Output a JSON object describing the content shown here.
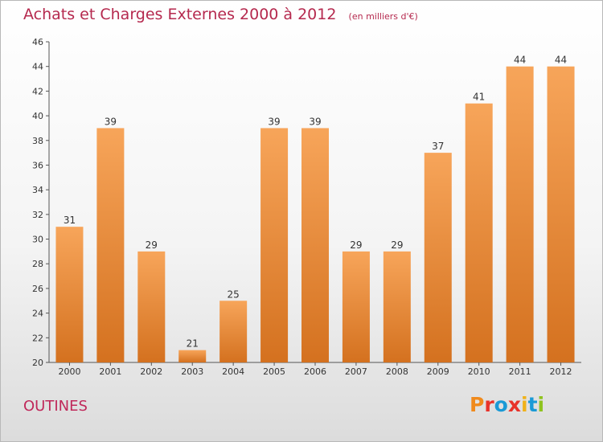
{
  "header": {
    "title": "Achats et Charges Externes 2000 à 2012",
    "subtitle": "(en milliers d'€)"
  },
  "footer": {
    "commune": "OUTINES",
    "brand": "Proxiti"
  },
  "colors": {
    "title": "#b5294e",
    "bar_top": "#f7a55a",
    "bar_bottom": "#d4711f",
    "brand_letters": [
      "#f08a1c",
      "#e8322a",
      "#1a9ad6",
      "#e8322a",
      "#f0b21a",
      "#1a9ad6",
      "#8fc31f"
    ]
  },
  "chart_data": {
    "type": "bar",
    "title": "Achats et Charges Externes 2000 à 2012",
    "subtitle": "(en milliers d'€)",
    "categories": [
      "2000",
      "2001",
      "2002",
      "2003",
      "2004",
      "2005",
      "2006",
      "2007",
      "2008",
      "2009",
      "2010",
      "2011",
      "2012"
    ],
    "values": [
      31,
      39,
      29,
      21,
      25,
      39,
      39,
      29,
      29,
      37,
      41,
      44,
      44
    ],
    "ylim": [
      20,
      46
    ],
    "yticks": [
      20,
      22,
      24,
      26,
      28,
      30,
      32,
      34,
      36,
      38,
      40,
      42,
      44,
      46
    ],
    "grid": false,
    "legend": "none"
  }
}
